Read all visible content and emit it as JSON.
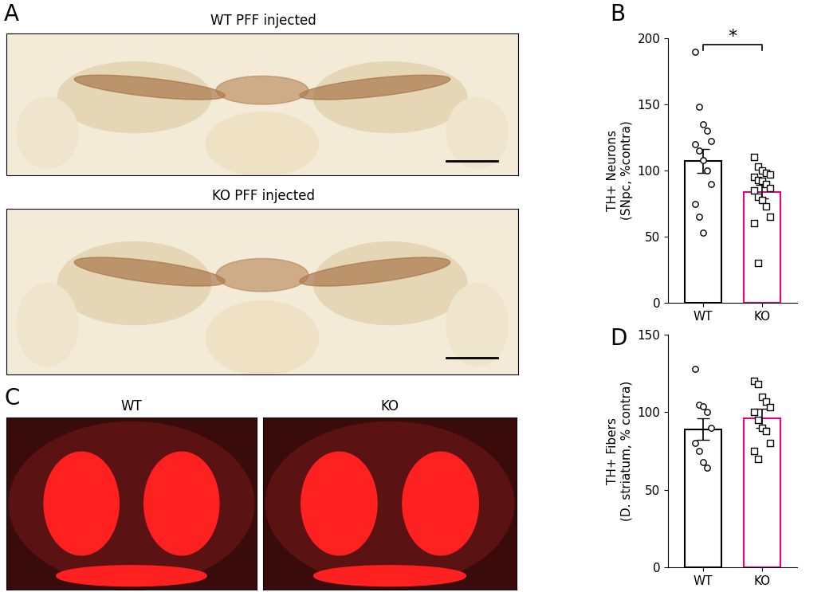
{
  "panels": {
    "A": "A",
    "B": "B",
    "C": "C",
    "D": "D"
  },
  "images": {
    "A": [
      "WT PFF injected",
      "KO PFF injected"
    ],
    "C": [
      "WT",
      "KO"
    ]
  },
  "chart_data": [
    {
      "type": "bar",
      "categories": [
        "WT",
        "KO"
      ],
      "values": [
        107,
        84
      ],
      "error": [
        9,
        5
      ],
      "points": [
        [
          190,
          148,
          135,
          130,
          122,
          120,
          115,
          108,
          100,
          90,
          75,
          65,
          53
        ],
        [
          110,
          103,
          100,
          98,
          97,
          95,
          93,
          92,
          90,
          87,
          85,
          80,
          78,
          73,
          65,
          60,
          30
        ]
      ],
      "colors": [
        "#000000",
        "#e6007e"
      ],
      "y_label": "TH+ Neurons\n(SNpc, %contra)",
      "ylim": [
        0,
        200
      ],
      "yticks": [
        0,
        50,
        100,
        150,
        200
      ],
      "significance": "*"
    },
    {
      "type": "bar",
      "categories": [
        "WT",
        "KO"
      ],
      "values": [
        89,
        96
      ],
      "error": [
        7,
        6
      ],
      "points": [
        [
          128,
          105,
          104,
          100,
          90,
          80,
          75,
          68,
          64
        ],
        [
          120,
          118,
          110,
          107,
          103,
          100,
          95,
          90,
          88,
          80,
          75,
          70
        ]
      ],
      "colors": [
        "#000000",
        "#e6007e"
      ],
      "y_label": "TH+ Fibers\n(D. striatum, % contra)",
      "ylim": [
        0,
        150
      ],
      "yticks": [
        0,
        50,
        100,
        150
      ]
    }
  ]
}
